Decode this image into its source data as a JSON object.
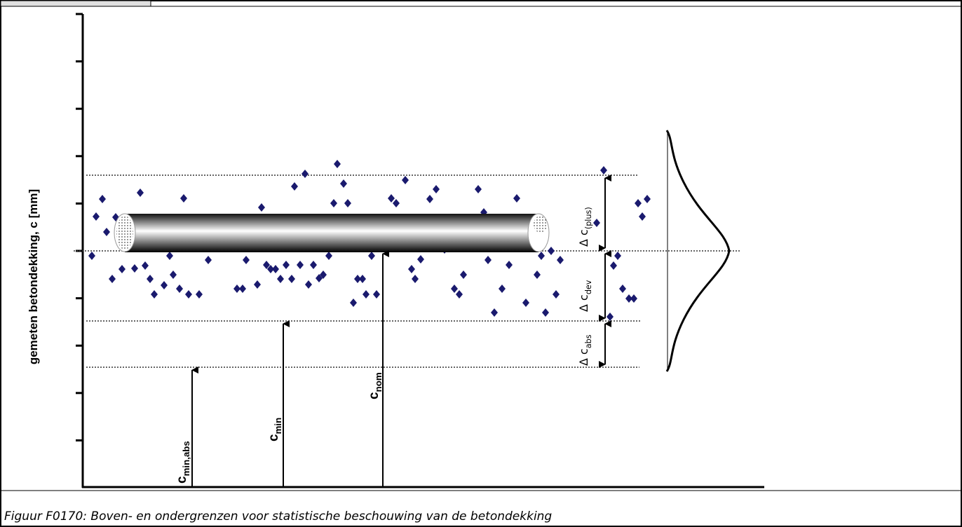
{
  "figure": {
    "y_axis_label": "gemeten betondekking, c [mm]",
    "arrows": [
      {
        "main": "c",
        "sub": "min,abs"
      },
      {
        "main": "c",
        "sub": "min"
      },
      {
        "main": "c",
        "sub": "nom"
      }
    ],
    "deltas": [
      {
        "main": "Δ c",
        "sub": "(plus)"
      },
      {
        "main": "Δ c",
        "sub": "dev"
      },
      {
        "main": "Δ c",
        "sub": "abs"
      }
    ]
  },
  "caption": "Figuur F0170: Boven- en ondergrenzen voor statistische beschouwing van de betondekking"
}
